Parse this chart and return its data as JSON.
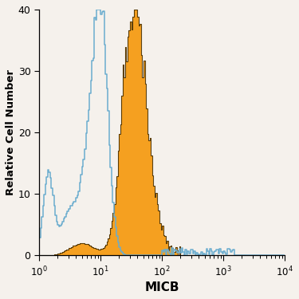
{
  "xlabel": "MICB",
  "ylabel": "Relative Cell Number",
  "ylim": [
    0,
    40
  ],
  "yticks": [
    0,
    10,
    20,
    30,
    40
  ],
  "blue_color": "#6aacce",
  "orange_color": "#f5a020",
  "orange_edge_color": "#4a3000",
  "background_color": "#f5f1ec",
  "figsize": [
    3.75,
    3.75
  ],
  "dpi": 100,
  "seed": 42
}
